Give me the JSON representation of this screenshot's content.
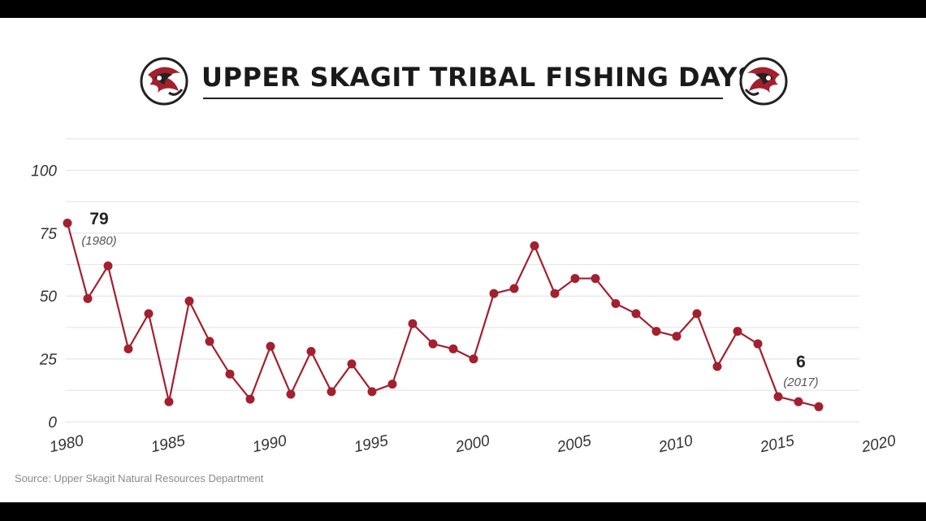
{
  "chart_data": {
    "type": "line",
    "title": "UPPER SKAGIT TRIBAL FISHING DAYS",
    "xlabel": "",
    "ylabel": "",
    "xlim": [
      1980,
      2020
    ],
    "ylim": [
      0,
      100
    ],
    "x_ticks": [
      "1980",
      "1985",
      "1990",
      "1995",
      "2000",
      "2005",
      "2010",
      "2015",
      "2020"
    ],
    "y_ticks": [
      "0",
      "25",
      "50",
      "75",
      "100"
    ],
    "grid": true,
    "color": "#a3202f",
    "x": [
      1980,
      1981,
      1982,
      1983,
      1984,
      1985,
      1986,
      1987,
      1988,
      1989,
      1990,
      1991,
      1992,
      1993,
      1994,
      1995,
      1996,
      1997,
      1998,
      1999,
      2000,
      2001,
      2002,
      2003,
      2004,
      2005,
      2006,
      2007,
      2008,
      2009,
      2010,
      2011,
      2012,
      2013,
      2014,
      2015,
      2016,
      2017
    ],
    "values": [
      79,
      49,
      62,
      29,
      43,
      8,
      48,
      32,
      19,
      9,
      30,
      11,
      28,
      12,
      23,
      12,
      15,
      39,
      31,
      29,
      25,
      51,
      53,
      70,
      51,
      57,
      57,
      47,
      43,
      36,
      34,
      43,
      22,
      36,
      31,
      10,
      8,
      6
    ],
    "annotations": [
      {
        "value": "79",
        "year": "(1980)"
      },
      {
        "value": "6",
        "year": "(2017)"
      }
    ],
    "source": "Source: Upper Skagit Natural Resources Department"
  },
  "logos": {
    "left": "salmon-emblem-icon",
    "right": "salmon-emblem-icon"
  }
}
